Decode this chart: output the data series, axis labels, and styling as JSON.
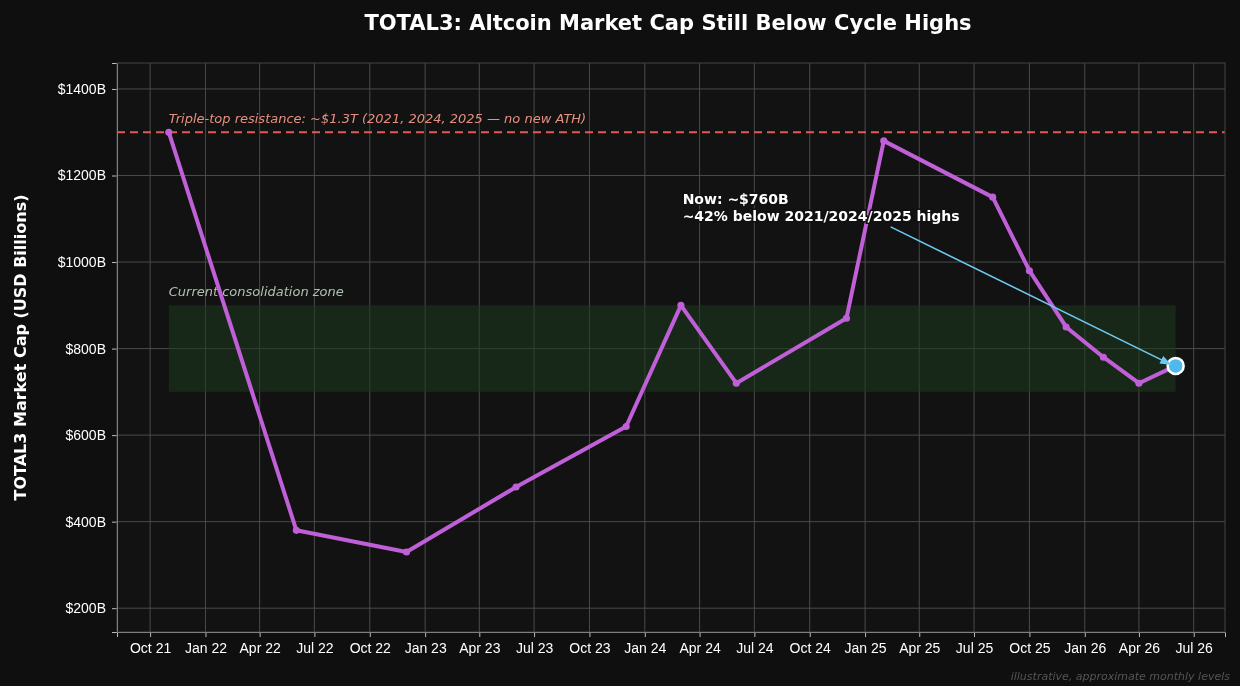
{
  "chart_data": {
    "type": "line",
    "title": "TOTAL3: Altcoin Market Cap Still Below Cycle Highs",
    "ylabel": "TOTAL3 Market Cap (USD Billions)",
    "xlim": [
      "2021-08-07",
      "2026-08-22"
    ],
    "ylim": [
      145,
      1460
    ],
    "xticks": [
      {
        "value": "2021-10-01",
        "label": "Oct 21"
      },
      {
        "value": "2022-01-01",
        "label": "Jan 22"
      },
      {
        "value": "2022-04-01",
        "label": "Apr 22"
      },
      {
        "value": "2022-07-01",
        "label": "Jul 22"
      },
      {
        "value": "2022-10-01",
        "label": "Oct 22"
      },
      {
        "value": "2023-01-01",
        "label": "Jan 23"
      },
      {
        "value": "2023-04-01",
        "label": "Apr 23"
      },
      {
        "value": "2023-07-01",
        "label": "Jul 23"
      },
      {
        "value": "2023-10-01",
        "label": "Oct 23"
      },
      {
        "value": "2024-01-01",
        "label": "Jan 24"
      },
      {
        "value": "2024-04-01",
        "label": "Apr 24"
      },
      {
        "value": "2024-07-01",
        "label": "Jul 24"
      },
      {
        "value": "2024-10-01",
        "label": "Oct 24"
      },
      {
        "value": "2025-01-01",
        "label": "Jan 25"
      },
      {
        "value": "2025-04-01",
        "label": "Apr 25"
      },
      {
        "value": "2025-07-01",
        "label": "Jul 25"
      },
      {
        "value": "2025-10-01",
        "label": "Oct 25"
      },
      {
        "value": "2026-01-01",
        "label": "Jan 26"
      },
      {
        "value": "2026-04-01",
        "label": "Apr 26"
      },
      {
        "value": "2026-07-01",
        "label": "Jul 26"
      }
    ],
    "yticks": [
      {
        "value": 200,
        "label": "$200B"
      },
      {
        "value": 400,
        "label": "$400B"
      },
      {
        "value": 600,
        "label": "$600B"
      },
      {
        "value": 800,
        "label": "$800B"
      },
      {
        "value": 1000,
        "label": "$1000B"
      },
      {
        "value": 1200,
        "label": "$1200B"
      },
      {
        "value": 1400,
        "label": "$1400B"
      }
    ],
    "grid": true,
    "marker": "circle",
    "line_style": "solid",
    "series": [
      {
        "color": "#c060d8",
        "x": [
          "2021-11-01",
          "2022-06-01",
          "2022-12-01",
          "2023-06-01",
          "2023-12-01",
          "2024-03-01",
          "2024-06-01",
          "2024-12-01",
          "2025-02-01",
          "2025-08-01",
          "2025-10-01",
          "2025-12-01",
          "2026-02-01",
          "2026-04-01",
          "2026-06-01"
        ],
        "values": [
          1300,
          380,
          330,
          480,
          620,
          900,
          720,
          870,
          1280,
          1150,
          980,
          850,
          780,
          720,
          760
        ]
      },
      {
        "type": "scatter",
        "color": "#4fb8ec",
        "x": [
          "2026-06-01"
        ],
        "values": [
          760
        ]
      }
    ],
    "ref_lines": [
      {
        "axis": "y",
        "value": 1300,
        "label": "Triple-top resistance: ~$1.3T (2021, 2024, 2025 — no new ATH)",
        "color": "#e05a5a",
        "line_style": "dashed"
      }
    ],
    "bands": [
      {
        "axis": "y",
        "from": 700,
        "to": 900,
        "label": "Current consolidation zone",
        "color": "#1e3a1e"
      }
    ],
    "annotations": [
      {
        "text": "Now: ~$760B\n~42% below 2021/2024/2025 highs",
        "x": "2026-06-01",
        "y": 760
      },
      "illustrative, approximate monthly levels"
    ]
  }
}
